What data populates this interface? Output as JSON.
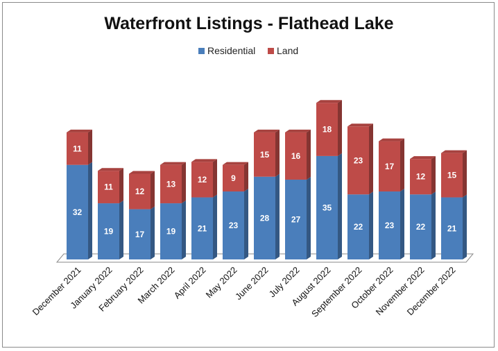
{
  "chart_data": {
    "type": "bar",
    "stacked": true,
    "title": "Waterfront Listings - Flathead Lake",
    "categories": [
      "December 2021",
      "January 2022",
      "February 2022",
      "March 2022",
      "April 2022",
      "May 2022",
      "June 2022",
      "July 2022",
      "August 2022",
      "September 2022",
      "October 2022",
      "November 2022",
      "December 2022"
    ],
    "series": [
      {
        "name": "Residential",
        "color": "#4a7ebb",
        "values": [
          32,
          19,
          17,
          19,
          21,
          23,
          28,
          27,
          35,
          22,
          23,
          22,
          21
        ]
      },
      {
        "name": "Land",
        "color": "#be4b48",
        "values": [
          11,
          11,
          12,
          13,
          12,
          9,
          15,
          16,
          18,
          23,
          17,
          12,
          15
        ]
      }
    ],
    "ylim": [
      0,
      58
    ],
    "grid": false,
    "legend": "top-center",
    "data_labels": true
  }
}
